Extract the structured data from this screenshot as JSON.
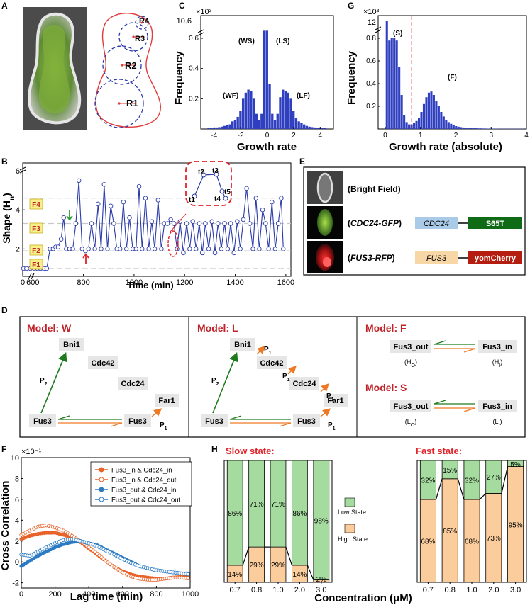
{
  "panel_labels": {
    "a": "A",
    "b": "B",
    "c": "C",
    "d": "D",
    "e": "E",
    "f": "F",
    "g": "G",
    "h": "H"
  },
  "panel_a": {
    "radii": [
      "R1",
      "R2",
      "R3",
      "R4"
    ],
    "colors": {
      "outline": "#e23b3b",
      "circle": "#2a3aa8",
      "cell_fill": "#6a8f3e",
      "background": "#4b4b4b"
    }
  },
  "panel_c": {
    "y_exp": "×10³",
    "y_top_tick": "10.6",
    "ylabel": "Frequency",
    "xlabel": "Growth rate",
    "peak_labels": [
      "(WS)",
      "(LS)",
      "(WF)",
      "(LF)"
    ]
  },
  "panel_g": {
    "y_exp": "×10³",
    "y_top_tick": "12",
    "ylabel": "Frequency",
    "xlabel": "Growth rate (absolute)",
    "peak_labels": [
      "(S)",
      "(F)"
    ]
  },
  "panel_b": {
    "ylabel": "Shape (H",
    "ylabel_sub": "n",
    "ylabel_close": ")",
    "xlabel": "Time (min)",
    "levels": [
      "F1",
      "F2",
      "F3",
      "F4"
    ],
    "inset": [
      "t1",
      "t2",
      "t3",
      "t4",
      "t5"
    ]
  },
  "panel_e": {
    "rows": [
      {
        "label": "(Bright Field)"
      },
      {
        "label_open": "(",
        "label_italic": "CDC24-GFP",
        "label_close": ")",
        "box1": "CDC24",
        "box2": "S65T",
        "color1": "#a9cbe8",
        "color2": "#0f6b15"
      },
      {
        "label_open": "(",
        "label_italic": "FUS3-RFP",
        "label_close": ")",
        "box1": "FUS3",
        "box2": "yomCherry",
        "color1": "#f8d7a6",
        "color2": "#b51d10"
      }
    ]
  },
  "panel_d": {
    "model_w": "Model: W",
    "model_l": "Model: L",
    "model_f": "Model: F",
    "model_s": "Model: S",
    "proteins": {
      "bni1": "Bni1",
      "cdc42": "Cdc42",
      "cdc24": "Cdc24",
      "far1": "Far1",
      "fus3": "Fus3"
    },
    "p1": "P",
    "p1_sub": "1",
    "p2": "P",
    "p2_sub": "2",
    "fus3_out": "Fus3_out",
    "fus3_in": "Fus3_in",
    "h_o": "(H",
    "h_o_sub": "O",
    "h_i_sub": "I",
    "l_o": "(L",
    "close": ")",
    "colors": {
      "green": "#1d7a1d",
      "orange": "#ef7a25",
      "title": "#c0242a"
    }
  },
  "panel_f": {
    "y_exp": "×10⁻¹",
    "ylabel": "Cross Correlation",
    "xlabel": "Lag time (min)",
    "legend": [
      "Fus3_in & Cdc24_in",
      "Fus3_in & Cdc24_out",
      "Fus3_out & Cdc24_in",
      "Fus3_out & Cdc24_out"
    ],
    "colors": {
      "orange": "#e8632a",
      "blue": "#2b7bc4"
    }
  },
  "panel_h": {
    "slow_title": "Slow state:",
    "fast_title": "Fast state:",
    "legend_low": "Low State",
    "legend_high": "High State",
    "xlabel": "Concentration (μM)",
    "colors": {
      "low": "#a6dba0",
      "high": "#fccd9c",
      "title": "#e0242a"
    }
  },
  "chart_data": [
    {
      "type": "bar",
      "panel": "C",
      "xlabel": "Growth rate",
      "ylabel": "Frequency",
      "xlim": [
        -5,
        5
      ],
      "ylim": [
        0,
        0.75
      ],
      "x_ticks": [
        "-4",
        "-2",
        "0",
        "2",
        "4"
      ],
      "y_ticks": [
        "0.2",
        "0.4",
        "0.6"
      ],
      "broken_axis": true,
      "bin_width": 0.2,
      "bins_center": [
        -4.4,
        -4.2,
        -4.0,
        -3.8,
        -3.6,
        -3.4,
        -3.2,
        -3.0,
        -2.8,
        -2.6,
        -2.4,
        -2.2,
        -2.0,
        -1.8,
        -1.6,
        -1.4,
        -1.2,
        -1.0,
        -0.8,
        -0.6,
        -0.4,
        -0.2,
        0.0,
        0.2,
        0.4,
        0.6,
        0.8,
        1.0,
        1.2,
        1.4,
        1.6,
        1.8,
        2.0,
        2.2,
        2.4,
        2.6,
        2.8,
        3.0,
        3.2,
        3.4,
        3.6,
        3.8,
        4.0,
        4.2,
        4.4
      ],
      "values": [
        0.005,
        0.005,
        0.008,
        0.01,
        0.012,
        0.015,
        0.02,
        0.025,
        0.03,
        0.05,
        0.06,
        0.08,
        0.12,
        0.2,
        0.24,
        0.26,
        0.25,
        0.2,
        0.1,
        0.06,
        0.1,
        0.65,
        0.65,
        0.3,
        0.1,
        0.06,
        0.1,
        0.21,
        0.26,
        0.25,
        0.24,
        0.2,
        0.12,
        0.07,
        0.05,
        0.04,
        0.03,
        0.02,
        0.015,
        0.012,
        0.01,
        0.008,
        0.006,
        0.005,
        0.005
      ]
    },
    {
      "type": "bar",
      "panel": "G",
      "xlabel": "Growth rate (absolute)",
      "ylabel": "Frequency",
      "xlim": [
        -0.2,
        4
      ],
      "ylim": [
        0,
        1.0
      ],
      "x_ticks": [
        "0",
        "1",
        "2",
        "3",
        "4"
      ],
      "y_ticks": [
        "0.2",
        "0.4",
        "0.6",
        "0.8"
      ],
      "broken_axis": true,
      "bin_width": 0.07,
      "bins_center": [
        0.05,
        0.12,
        0.19,
        0.26,
        0.33,
        0.4,
        0.47,
        0.54,
        0.61,
        0.68,
        0.75,
        0.82,
        0.89,
        0.96,
        1.03,
        1.1,
        1.17,
        1.24,
        1.31,
        1.38,
        1.45,
        1.52,
        1.59,
        1.66,
        1.73,
        1.8,
        1.87,
        1.94,
        2.01,
        2.08,
        2.15,
        2.22,
        2.29,
        2.36,
        2.43,
        2.5,
        2.57,
        2.64,
        2.71,
        2.78,
        2.85,
        2.92,
        2.99,
        3.06,
        3.13,
        3.2,
        3.27,
        3.34,
        3.41,
        3.48,
        3.55,
        3.62,
        3.69,
        3.76,
        3.83,
        3.9
      ],
      "values": [
        0.95,
        0.78,
        0.8,
        0.8,
        0.78,
        0.55,
        0.3,
        0.12,
        0.06,
        0.04,
        0.04,
        0.05,
        0.07,
        0.1,
        0.15,
        0.22,
        0.28,
        0.32,
        0.33,
        0.3,
        0.25,
        0.2,
        0.15,
        0.11,
        0.08,
        0.06,
        0.045,
        0.035,
        0.025,
        0.02,
        0.016,
        0.013,
        0.011,
        0.009,
        0.008,
        0.007,
        0.006,
        0.005,
        0.005,
        0.004,
        0.004,
        0.003,
        0.003,
        0.003,
        0.003,
        0.002,
        0.002,
        0.002,
        0.002,
        0.002,
        0.002,
        0.002,
        0.002,
        0.002,
        0.002,
        0.002
      ],
      "threshold_line": 0.75
    },
    {
      "type": "line",
      "panel": "B",
      "xlabel": "Time (min)",
      "ylabel": "Shape (Hn)",
      "xlim": [
        560,
        1620
      ],
      "ylim": [
        0.6,
        6.4
      ],
      "x_ticks": [
        "0",
        "600",
        "800",
        "1000",
        "1200",
        "1400",
        "1600"
      ],
      "y_ticks": [
        "2",
        "4",
        "6"
      ],
      "level_lines": [
        1.0,
        1.9,
        3.3,
        4.6
      ],
      "x": [
        563,
        575,
        590,
        605,
        618,
        630,
        643,
        655,
        668,
        680,
        690,
        700,
        712,
        722,
        732,
        745,
        758,
        770,
        782,
        795,
        808,
        820,
        832,
        845,
        858,
        870,
        882,
        895,
        908,
        920,
        932,
        945,
        958,
        970,
        982,
        995,
        1008,
        1020,
        1032,
        1045,
        1058,
        1070,
        1082,
        1095,
        1108,
        1120,
        1132,
        1145,
        1158,
        1170,
        1182,
        1195,
        1208,
        1220,
        1232,
        1245,
        1258,
        1270,
        1282,
        1295,
        1308,
        1320,
        1332,
        1345,
        1358,
        1370,
        1382,
        1395,
        1408,
        1420,
        1432,
        1445,
        1458,
        1470,
        1482,
        1495,
        1508,
        1520,
        1532,
        1545,
        1558,
        1570,
        1582,
        1590
      ],
      "y": [
        1.0,
        1.0,
        1.0,
        1.0,
        1.0,
        1.0,
        1.0,
        1.0,
        2.0,
        2.0,
        2.1,
        2.1,
        2.5,
        3.6,
        2.0,
        2.0,
        2.0,
        3.3,
        5.5,
        2.0,
        1.9,
        2.0,
        3.3,
        2.0,
        4.3,
        2.0,
        5.3,
        2.0,
        4.2,
        3.3,
        2.0,
        2.0,
        4.4,
        2.0,
        3.6,
        2.0,
        2.0,
        5.2,
        2.0,
        4.6,
        2.0,
        3.4,
        2.0,
        4.5,
        2.0,
        3.3,
        3.3,
        3.5,
        3.3,
        2.0,
        3.4,
        1.8,
        3.3,
        2.0,
        3.4,
        2.0,
        3.3,
        1.8,
        3.3,
        2.0,
        3.4,
        1.8,
        3.3,
        2.0,
        3.3,
        2.0,
        3.3,
        1.8,
        3.4,
        2.0,
        3.5,
        5.1,
        3.3,
        2.0,
        4.6,
        2.0,
        4.0,
        3.3,
        2.0,
        4.4,
        2.0,
        3.3,
        4.6,
        2.0
      ]
    },
    {
      "type": "line",
      "panel": "F",
      "xlabel": "Lag time (min)",
      "ylabel": "Cross Correlation",
      "xlim": [
        0,
        1000
      ],
      "ylim": [
        -2.5,
        10
      ],
      "x_ticks": [
        "0",
        "200",
        "400",
        "600",
        "800",
        "1000"
      ],
      "y_ticks": [
        "-2",
        "0",
        "2",
        "4",
        "6",
        "8",
        "10"
      ],
      "x": [
        0,
        50,
        100,
        150,
        200,
        250,
        300,
        350,
        400,
        450,
        500,
        550,
        600,
        650,
        700,
        750,
        800,
        850,
        900,
        950,
        1000
      ],
      "series": [
        {
          "name": "Fus3_in & Cdc24_in",
          "values": [
            2.2,
            2.5,
            2.7,
            2.8,
            2.8,
            2.6,
            2.3,
            1.9,
            1.3,
            0.7,
            0.1,
            -0.5,
            -0.9,
            -1.2,
            -1.4,
            -1.5,
            -1.6,
            -1.6,
            -1.5,
            -1.4,
            -1.3
          ]
        },
        {
          "name": "Fus3_in & Cdc24_out",
          "values": [
            2.6,
            3.0,
            3.4,
            3.5,
            3.3,
            3.0,
            2.5,
            2.0,
            1.4,
            0.8,
            0.1,
            -0.5,
            -1.0,
            -1.4,
            -1.6,
            -1.7,
            -1.7,
            -1.6,
            -1.5,
            -1.5,
            -1.6
          ]
        },
        {
          "name": "Fus3_out & Cdc24_in",
          "values": [
            -0.4,
            0.1,
            0.6,
            1.0,
            1.4,
            1.7,
            1.9,
            2.0,
            1.8,
            1.6,
            1.2,
            0.8,
            0.4,
            0.0,
            -0.4,
            -0.6,
            -0.8,
            -0.9,
            -1.0,
            -1.1,
            -1.1
          ]
        },
        {
          "name": "Fus3_out & Cdc24_out",
          "values": [
            0.7,
            0.6,
            1.0,
            1.4,
            1.8,
            2.1,
            2.2,
            2.0,
            1.8,
            1.5,
            1.1,
            0.7,
            0.3,
            -0.1,
            -0.4,
            -0.6,
            -0.8,
            -0.9,
            -1.0,
            -1.1,
            -1.2
          ]
        }
      ]
    },
    {
      "type": "bar",
      "panel": "H-slow",
      "title": "Slow state:",
      "xlabel": "Concentration (μM)",
      "categories": [
        "0.7",
        "0.8",
        "1.0",
        "2.0",
        "3.0"
      ],
      "series": [
        {
          "name": "Low State",
          "values": [
            86,
            71,
            71,
            86,
            98
          ],
          "labels": [
            "86%",
            "71%",
            "71%",
            "86%",
            "98%"
          ]
        },
        {
          "name": "High State",
          "values": [
            14,
            29,
            29,
            14,
            2
          ],
          "labels": [
            "14%",
            "29%",
            "29%",
            "14%",
            "2%"
          ]
        }
      ]
    },
    {
      "type": "bar",
      "panel": "H-fast",
      "title": "Fast state:",
      "xlabel": "Concentration (μM)",
      "categories": [
        "0.7",
        "0.8",
        "1.0",
        "2.0",
        "3.0"
      ],
      "series": [
        {
          "name": "Low State",
          "values": [
            32,
            15,
            32,
            27,
            5
          ],
          "labels": [
            "32%",
            "15%",
            "32%",
            "27%",
            "5%"
          ]
        },
        {
          "name": "High State",
          "values": [
            68,
            85,
            68,
            73,
            95
          ],
          "labels": [
            "68%",
            "85%",
            "68%",
            "73%",
            "95%"
          ]
        }
      ]
    }
  ]
}
